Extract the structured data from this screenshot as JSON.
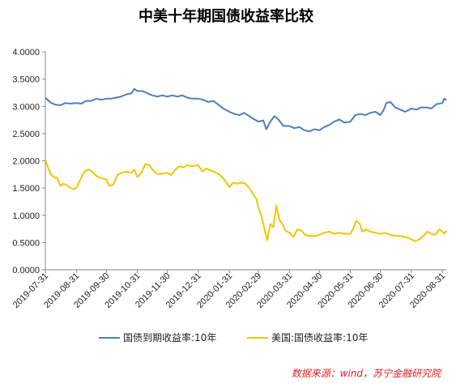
{
  "chart_data": {
    "type": "line",
    "title": "中美十年期国债收益率比较",
    "xlabel": "",
    "ylabel": "",
    "ylim": [
      0,
      4
    ],
    "yticks": [
      "4.0000",
      "3.5000",
      "3.0000",
      "2.5000",
      "2.0000",
      "1.5000",
      "1.0000",
      "0.5000",
      "0.0000"
    ],
    "ytick_values": [
      4.0,
      3.5,
      3.0,
      2.5,
      2.0,
      1.5,
      1.0,
      0.5,
      0.0
    ],
    "x_range": [
      "2019-07-31",
      "2020-09-04"
    ],
    "xticks": [
      "2019-07-31",
      "2019-08-31",
      "2019-09-30",
      "2019-10-31",
      "2019-11-30",
      "2019-12-31",
      "2020-01-31",
      "2020-02-29",
      "2020-03-31",
      "2020-04-30",
      "2020-05-31",
      "2020-06-30",
      "2020-07-31",
      "2020-08-31"
    ],
    "grid": false,
    "legend_position": "bottom",
    "series": [
      {
        "name": "国债到期收益率:10年",
        "color": "#4e7fbf",
        "points": [
          [
            "2019-07-31",
            3.16
          ],
          [
            "2019-08-05",
            3.07
          ],
          [
            "2019-08-10",
            3.03
          ],
          [
            "2019-08-15",
            3.02
          ],
          [
            "2019-08-20",
            3.06
          ],
          [
            "2019-08-25",
            3.05
          ],
          [
            "2019-08-31",
            3.06
          ],
          [
            "2019-09-05",
            3.05
          ],
          [
            "2019-09-10",
            3.1
          ],
          [
            "2019-09-15",
            3.1
          ],
          [
            "2019-09-20",
            3.14
          ],
          [
            "2019-09-25",
            3.12
          ],
          [
            "2019-09-30",
            3.14
          ],
          [
            "2019-10-05",
            3.14
          ],
          [
            "2019-10-10",
            3.16
          ],
          [
            "2019-10-15",
            3.18
          ],
          [
            "2019-10-20",
            3.22
          ],
          [
            "2019-10-25",
            3.24
          ],
          [
            "2019-10-28",
            3.32
          ],
          [
            "2019-10-31",
            3.28
          ],
          [
            "2019-11-05",
            3.28
          ],
          [
            "2019-11-10",
            3.24
          ],
          [
            "2019-11-15",
            3.2
          ],
          [
            "2019-11-20",
            3.18
          ],
          [
            "2019-11-25",
            3.2
          ],
          [
            "2019-11-30",
            3.18
          ],
          [
            "2019-12-05",
            3.2
          ],
          [
            "2019-12-10",
            3.18
          ],
          [
            "2019-12-15",
            3.2
          ],
          [
            "2019-12-20",
            3.16
          ],
          [
            "2019-12-25",
            3.14
          ],
          [
            "2019-12-31",
            3.14
          ],
          [
            "2020-01-05",
            3.12
          ],
          [
            "2020-01-10",
            3.08
          ],
          [
            "2020-01-15",
            3.1
          ],
          [
            "2020-01-20",
            3.03
          ],
          [
            "2020-01-25",
            2.96
          ],
          [
            "2020-01-31",
            2.9
          ],
          [
            "2020-02-05",
            2.86
          ],
          [
            "2020-02-10",
            2.84
          ],
          [
            "2020-02-15",
            2.88
          ],
          [
            "2020-02-20",
            2.82
          ],
          [
            "2020-02-25",
            2.76
          ],
          [
            "2020-02-29",
            2.72
          ],
          [
            "2020-03-05",
            2.74
          ],
          [
            "2020-03-08",
            2.58
          ],
          [
            "2020-03-12",
            2.72
          ],
          [
            "2020-03-16",
            2.82
          ],
          [
            "2020-03-20",
            2.76
          ],
          [
            "2020-03-25",
            2.64
          ],
          [
            "2020-03-31",
            2.64
          ],
          [
            "2020-04-05",
            2.6
          ],
          [
            "2020-04-10",
            2.62
          ],
          [
            "2020-04-15",
            2.56
          ],
          [
            "2020-04-20",
            2.54
          ],
          [
            "2020-04-25",
            2.58
          ],
          [
            "2020-04-30",
            2.56
          ],
          [
            "2020-05-05",
            2.62
          ],
          [
            "2020-05-10",
            2.66
          ],
          [
            "2020-05-15",
            2.72
          ],
          [
            "2020-05-20",
            2.76
          ],
          [
            "2020-05-25",
            2.7
          ],
          [
            "2020-05-31",
            2.72
          ],
          [
            "2020-06-05",
            2.84
          ],
          [
            "2020-06-10",
            2.86
          ],
          [
            "2020-06-15",
            2.84
          ],
          [
            "2020-06-20",
            2.88
          ],
          [
            "2020-06-25",
            2.9
          ],
          [
            "2020-06-30",
            2.84
          ],
          [
            "2020-07-03",
            2.92
          ],
          [
            "2020-07-06",
            3.06
          ],
          [
            "2020-07-10",
            3.08
          ],
          [
            "2020-07-15",
            2.98
          ],
          [
            "2020-07-20",
            2.94
          ],
          [
            "2020-07-25",
            2.9
          ],
          [
            "2020-07-31",
            2.96
          ],
          [
            "2020-08-05",
            2.94
          ],
          [
            "2020-08-10",
            2.98
          ],
          [
            "2020-08-15",
            2.98
          ],
          [
            "2020-08-20",
            2.96
          ],
          [
            "2020-08-25",
            3.04
          ],
          [
            "2020-08-31",
            3.06
          ],
          [
            "2020-09-02",
            3.14
          ],
          [
            "2020-09-04",
            3.12
          ]
        ]
      },
      {
        "name": "美国:国债收益率:10年",
        "color": "#f5c400",
        "points": [
          [
            "2019-07-31",
            2.02
          ],
          [
            "2019-08-03",
            1.86
          ],
          [
            "2019-08-06",
            1.74
          ],
          [
            "2019-08-09",
            1.7
          ],
          [
            "2019-08-12",
            1.68
          ],
          [
            "2019-08-15",
            1.54
          ],
          [
            "2019-08-18",
            1.58
          ],
          [
            "2019-08-21",
            1.56
          ],
          [
            "2019-08-25",
            1.5
          ],
          [
            "2019-08-28",
            1.48
          ],
          [
            "2019-08-31",
            1.5
          ],
          [
            "2019-09-04",
            1.66
          ],
          [
            "2019-09-08",
            1.8
          ],
          [
            "2019-09-12",
            1.84
          ],
          [
            "2019-09-16",
            1.8
          ],
          [
            "2019-09-20",
            1.72
          ],
          [
            "2019-09-25",
            1.68
          ],
          [
            "2019-09-30",
            1.66
          ],
          [
            "2019-10-03",
            1.54
          ],
          [
            "2019-10-07",
            1.56
          ],
          [
            "2019-10-11",
            1.74
          ],
          [
            "2019-10-15",
            1.78
          ],
          [
            "2019-10-20",
            1.8
          ],
          [
            "2019-10-25",
            1.78
          ],
          [
            "2019-10-28",
            1.84
          ],
          [
            "2019-10-31",
            1.7
          ],
          [
            "2019-11-04",
            1.78
          ],
          [
            "2019-11-08",
            1.94
          ],
          [
            "2019-11-12",
            1.92
          ],
          [
            "2019-11-16",
            1.82
          ],
          [
            "2019-11-20",
            1.76
          ],
          [
            "2019-11-25",
            1.76
          ],
          [
            "2019-11-30",
            1.78
          ],
          [
            "2019-12-04",
            1.74
          ],
          [
            "2019-12-08",
            1.84
          ],
          [
            "2019-12-12",
            1.9
          ],
          [
            "2019-12-16",
            1.88
          ],
          [
            "2019-12-20",
            1.92
          ],
          [
            "2019-12-25",
            1.9
          ],
          [
            "2019-12-31",
            1.92
          ],
          [
            "2020-01-04",
            1.8
          ],
          [
            "2020-01-08",
            1.86
          ],
          [
            "2020-01-12",
            1.82
          ],
          [
            "2020-01-16",
            1.8
          ],
          [
            "2020-01-20",
            1.76
          ],
          [
            "2020-01-24",
            1.7
          ],
          [
            "2020-01-28",
            1.6
          ],
          [
            "2020-01-31",
            1.52
          ],
          [
            "2020-02-04",
            1.6
          ],
          [
            "2020-02-08",
            1.58
          ],
          [
            "2020-02-12",
            1.6
          ],
          [
            "2020-02-16",
            1.58
          ],
          [
            "2020-02-20",
            1.5
          ],
          [
            "2020-02-24",
            1.38
          ],
          [
            "2020-02-27",
            1.3
          ],
          [
            "2020-02-29",
            1.14
          ],
          [
            "2020-03-03",
            1.0
          ],
          [
            "2020-03-06",
            0.76
          ],
          [
            "2020-03-09",
            0.54
          ],
          [
            "2020-03-12",
            0.84
          ],
          [
            "2020-03-15",
            0.78
          ],
          [
            "2020-03-18",
            1.18
          ],
          [
            "2020-03-21",
            0.92
          ],
          [
            "2020-03-24",
            0.84
          ],
          [
            "2020-03-27",
            0.72
          ],
          [
            "2020-03-31",
            0.68
          ],
          [
            "2020-04-04",
            0.6
          ],
          [
            "2020-04-08",
            0.74
          ],
          [
            "2020-04-12",
            0.72
          ],
          [
            "2020-04-16",
            0.64
          ],
          [
            "2020-04-20",
            0.62
          ],
          [
            "2020-04-25",
            0.62
          ],
          [
            "2020-04-30",
            0.64
          ],
          [
            "2020-05-05",
            0.68
          ],
          [
            "2020-05-10",
            0.7
          ],
          [
            "2020-05-15",
            0.66
          ],
          [
            "2020-05-20",
            0.68
          ],
          [
            "2020-05-25",
            0.66
          ],
          [
            "2020-05-31",
            0.66
          ],
          [
            "2020-06-03",
            0.76
          ],
          [
            "2020-06-06",
            0.9
          ],
          [
            "2020-06-09",
            0.86
          ],
          [
            "2020-06-12",
            0.7
          ],
          [
            "2020-06-16",
            0.74
          ],
          [
            "2020-06-20",
            0.7
          ],
          [
            "2020-06-25",
            0.68
          ],
          [
            "2020-06-30",
            0.66
          ],
          [
            "2020-07-05",
            0.68
          ],
          [
            "2020-07-10",
            0.64
          ],
          [
            "2020-07-15",
            0.62
          ],
          [
            "2020-07-20",
            0.62
          ],
          [
            "2020-07-25",
            0.6
          ],
          [
            "2020-07-31",
            0.56
          ],
          [
            "2020-08-04",
            0.52
          ],
          [
            "2020-08-08",
            0.56
          ],
          [
            "2020-08-12",
            0.62
          ],
          [
            "2020-08-16",
            0.7
          ],
          [
            "2020-08-20",
            0.66
          ],
          [
            "2020-08-24",
            0.64
          ],
          [
            "2020-08-28",
            0.74
          ],
          [
            "2020-08-31",
            0.7
          ],
          [
            "2020-09-02",
            0.66
          ],
          [
            "2020-09-04",
            0.72
          ]
        ]
      }
    ]
  },
  "legend": {
    "cn_label": "国债到期收益率:10年",
    "us_label": "美国:国债收益率:10年"
  },
  "source_text": "数据来源：wind，苏宁金融研究院"
}
